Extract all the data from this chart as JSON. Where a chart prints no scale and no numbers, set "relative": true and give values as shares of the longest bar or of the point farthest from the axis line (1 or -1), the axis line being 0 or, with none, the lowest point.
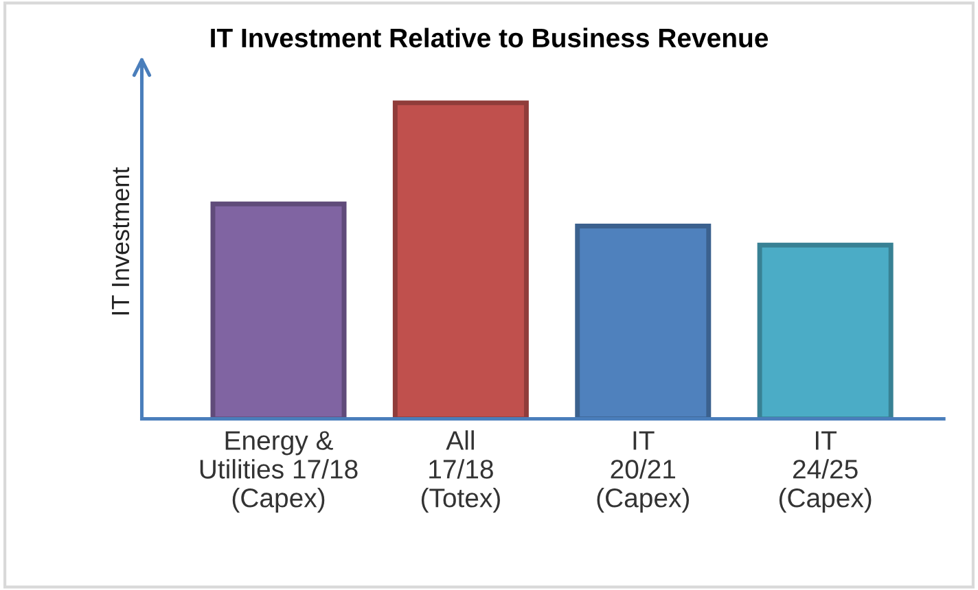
{
  "chart_data": {
    "type": "bar",
    "title": "IT Investment Relative to Business Revenue",
    "ylabel": "IT Investment",
    "categories": [
      "Energy &\nUtilities 17/18\n(Capex)",
      "All\n17/18\n(Totex)",
      "IT\n20/21\n(Capex)",
      "IT\n24/25\n(Capex)"
    ],
    "values": [
      0.68,
      1,
      0.61,
      0.55
    ],
    "colors": [
      "#8064a2",
      "#c0504d",
      "#4f81bd",
      "#4bacc6"
    ],
    "relative": true,
    "grid": false,
    "legend": false
  }
}
